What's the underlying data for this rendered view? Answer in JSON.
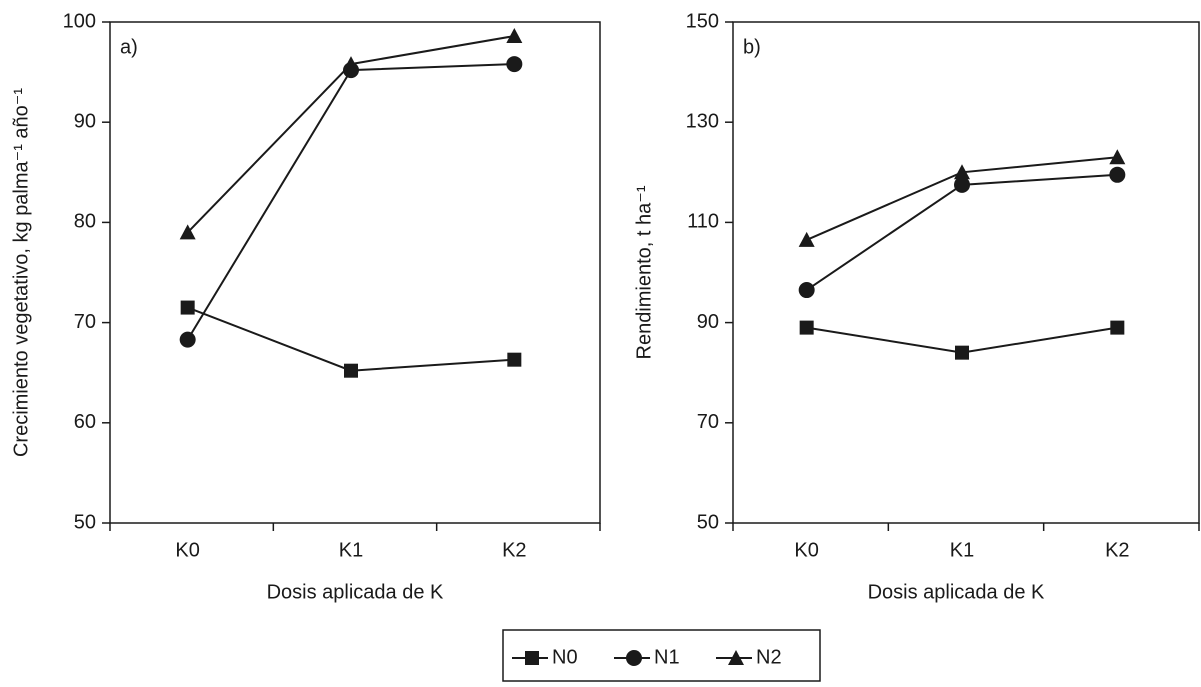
{
  "chart_data": [
    {
      "type": "line",
      "panel_label": "a)",
      "ylabel": "Crecimiento vegetativo, kg palma⁻¹ año⁻¹",
      "xlabel": "Dosis aplicada de K",
      "categories": [
        "K0",
        "K1",
        "K2"
      ],
      "ylim": [
        50,
        100
      ],
      "yticks": [
        50,
        60,
        70,
        80,
        90,
        100
      ],
      "series": [
        {
          "values": [
            71.5,
            65.2,
            66.3
          ]
        },
        {
          "values": [
            68.3,
            95.2,
            95.8
          ]
        },
        {
          "values": [
            79,
            95.8,
            98.6
          ]
        }
      ]
    },
    {
      "type": "line",
      "panel_label": "b)",
      "ylabel": "Rendimiento, t ha⁻¹",
      "xlabel": "Dosis aplicada de K",
      "categories": [
        "K0",
        "K1",
        "K2"
      ],
      "ylim": [
        50,
        150
      ],
      "yticks": [
        50,
        70,
        90,
        110,
        130,
        150
      ],
      "series": [
        {
          "values": [
            89,
            84,
            89
          ]
        },
        {
          "values": [
            96.5,
            117.5,
            119.5
          ]
        },
        {
          "values": [
            106.5,
            120,
            123
          ]
        }
      ]
    }
  ],
  "legend": [
    {
      "name": "N0",
      "marker": "square",
      "color": "#1a1a1a"
    },
    {
      "name": "N1",
      "marker": "circle",
      "color": "#1a1a1a"
    },
    {
      "name": "N2",
      "marker": "triangle",
      "color": "#1a1a1a"
    }
  ]
}
